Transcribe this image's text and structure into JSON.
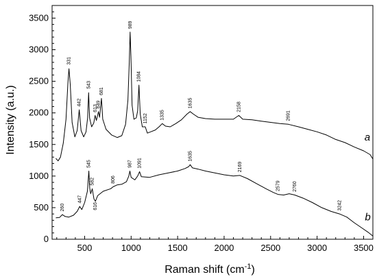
{
  "chart_data": {
    "type": "line",
    "xlabel": "Raman shift (cm",
    "xlabel_sup": "-1",
    "xlabel_end": ")",
    "ylabel": "Intensity (a.u.)",
    "xlim": [
      150,
      3600
    ],
    "ylim": [
      0,
      3700
    ],
    "xticks": [
      500,
      1000,
      1500,
      2000,
      2500,
      3000,
      3500
    ],
    "yticks": [
      0,
      500,
      1000,
      1500,
      2000,
      2500,
      3000,
      3500
    ],
    "grid": false,
    "series": [
      {
        "name": "a",
        "label_pos": [
          3540,
          1560
        ],
        "points": [
          [
            190,
            1280
          ],
          [
            215,
            1240
          ],
          [
            240,
            1300
          ],
          [
            270,
            1520
          ],
          [
            300,
            1900
          ],
          [
            320,
            2480
          ],
          [
            331,
            2700
          ],
          [
            345,
            2450
          ],
          [
            365,
            1850
          ],
          [
            395,
            1620
          ],
          [
            420,
            1720
          ],
          [
            442,
            2050
          ],
          [
            462,
            1720
          ],
          [
            490,
            1620
          ],
          [
            515,
            1700
          ],
          [
            532,
            1920
          ],
          [
            543,
            2320
          ],
          [
            553,
            1920
          ],
          [
            575,
            1780
          ],
          [
            598,
            1840
          ],
          [
            613,
            1960
          ],
          [
            626,
            1880
          ],
          [
            649,
            2020
          ],
          [
            661,
            1930
          ],
          [
            681,
            2230
          ],
          [
            695,
            1900
          ],
          [
            730,
            1740
          ],
          [
            790,
            1650
          ],
          [
            850,
            1610
          ],
          [
            900,
            1640
          ],
          [
            940,
            1820
          ],
          [
            965,
            2200
          ],
          [
            980,
            2800
          ],
          [
            989,
            3280
          ],
          [
            998,
            2900
          ],
          [
            1010,
            2120
          ],
          [
            1030,
            1900
          ],
          [
            1055,
            1920
          ],
          [
            1070,
            2030
          ],
          [
            1084,
            2440
          ],
          [
            1098,
            1980
          ],
          [
            1120,
            1780
          ],
          [
            1152,
            1780
          ],
          [
            1175,
            1680
          ],
          [
            1210,
            1700
          ],
          [
            1260,
            1730
          ],
          [
            1300,
            1780
          ],
          [
            1335,
            1830
          ],
          [
            1370,
            1790
          ],
          [
            1420,
            1780
          ],
          [
            1480,
            1830
          ],
          [
            1540,
            1890
          ],
          [
            1600,
            1980
          ],
          [
            1635,
            2020
          ],
          [
            1670,
            1980
          ],
          [
            1720,
            1930
          ],
          [
            1800,
            1910
          ],
          [
            1900,
            1900
          ],
          [
            2000,
            1900
          ],
          [
            2100,
            1900
          ],
          [
            2158,
            1960
          ],
          [
            2200,
            1900
          ],
          [
            2300,
            1890
          ],
          [
            2400,
            1870
          ],
          [
            2500,
            1850
          ],
          [
            2600,
            1830
          ],
          [
            2691,
            1820
          ],
          [
            2800,
            1780
          ],
          [
            2900,
            1740
          ],
          [
            3000,
            1700
          ],
          [
            3100,
            1650
          ],
          [
            3200,
            1580
          ],
          [
            3300,
            1530
          ],
          [
            3400,
            1460
          ],
          [
            3500,
            1400
          ],
          [
            3570,
            1340
          ],
          [
            3600,
            1270
          ]
        ]
      },
      {
        "name": "b",
        "label_pos": [
          3545,
          300
        ],
        "points": [
          [
            190,
            340
          ],
          [
            230,
            345
          ],
          [
            260,
            390
          ],
          [
            290,
            360
          ],
          [
            330,
            350
          ],
          [
            380,
            380
          ],
          [
            420,
            440
          ],
          [
            447,
            520
          ],
          [
            470,
            470
          ],
          [
            500,
            580
          ],
          [
            530,
            760
          ],
          [
            545,
            1080
          ],
          [
            555,
            810
          ],
          [
            565,
            720
          ],
          [
            582,
            800
          ],
          [
            600,
            640
          ],
          [
            616,
            600
          ],
          [
            640,
            690
          ],
          [
            700,
            760
          ],
          [
            780,
            800
          ],
          [
            806,
            830
          ],
          [
            850,
            860
          ],
          [
            900,
            870
          ],
          [
            950,
            910
          ],
          [
            975,
            1000
          ],
          [
            987,
            1080
          ],
          [
            1000,
            980
          ],
          [
            1040,
            940
          ],
          [
            1070,
            1000
          ],
          [
            1091,
            1070
          ],
          [
            1110,
            990
          ],
          [
            1200,
            980
          ],
          [
            1300,
            1020
          ],
          [
            1400,
            1050
          ],
          [
            1500,
            1080
          ],
          [
            1580,
            1120
          ],
          [
            1620,
            1150
          ],
          [
            1635,
            1180
          ],
          [
            1660,
            1130
          ],
          [
            1720,
            1110
          ],
          [
            1800,
            1080
          ],
          [
            1900,
            1050
          ],
          [
            2000,
            1020
          ],
          [
            2100,
            1000
          ],
          [
            2169,
            1010
          ],
          [
            2250,
            960
          ],
          [
            2350,
            880
          ],
          [
            2450,
            800
          ],
          [
            2530,
            740
          ],
          [
            2579,
            710
          ],
          [
            2640,
            700
          ],
          [
            2700,
            720
          ],
          [
            2760,
            700
          ],
          [
            2850,
            650
          ],
          [
            2950,
            580
          ],
          [
            3050,
            500
          ],
          [
            3150,
            440
          ],
          [
            3242,
            400
          ],
          [
            3320,
            350
          ],
          [
            3400,
            260
          ],
          [
            3480,
            180
          ],
          [
            3550,
            110
          ],
          [
            3600,
            50
          ]
        ]
      }
    ],
    "annotations": [
      {
        "text": "331",
        "x": 331,
        "y": 2760,
        "series": "a"
      },
      {
        "text": "442",
        "x": 442,
        "y": 2100,
        "series": "a"
      },
      {
        "text": "543",
        "x": 543,
        "y": 2380,
        "series": "a"
      },
      {
        "text": "613",
        "x": 613,
        "y": 2010,
        "series": "a"
      },
      {
        "text": "649",
        "x": 649,
        "y": 2070,
        "series": "a"
      },
      {
        "text": "681",
        "x": 681,
        "y": 2280,
        "series": "a"
      },
      {
        "text": "989",
        "x": 989,
        "y": 3330,
        "series": "a"
      },
      {
        "text": "1084",
        "x": 1084,
        "y": 2490,
        "series": "a"
      },
      {
        "text": "1152",
        "x": 1152,
        "y": 1830,
        "series": "a"
      },
      {
        "text": "1335",
        "x": 1335,
        "y": 1880,
        "series": "a"
      },
      {
        "text": "1635",
        "x": 1635,
        "y": 2070,
        "series": "a"
      },
      {
        "text": "2158",
        "x": 2158,
        "y": 2010,
        "series": "a"
      },
      {
        "text": "2691",
        "x": 2691,
        "y": 1870,
        "series": "a"
      },
      {
        "text": "260",
        "x": 260,
        "y": 440,
        "series": "b"
      },
      {
        "text": "447",
        "x": 447,
        "y": 570,
        "series": "b"
      },
      {
        "text": "545",
        "x": 545,
        "y": 1130,
        "series": "b"
      },
      {
        "text": "582",
        "x": 582,
        "y": 850,
        "series": "b"
      },
      {
        "text": "616",
        "x": 616,
        "y": 460,
        "series": "b"
      },
      {
        "text": "806",
        "x": 806,
        "y": 880,
        "series": "b"
      },
      {
        "text": "987",
        "x": 987,
        "y": 1130,
        "series": "b"
      },
      {
        "text": "1091",
        "x": 1091,
        "y": 1120,
        "series": "b"
      },
      {
        "text": "1635",
        "x": 1635,
        "y": 1230,
        "series": "b"
      },
      {
        "text": "2169",
        "x": 2169,
        "y": 1060,
        "series": "b"
      },
      {
        "text": "2579",
        "x": 2579,
        "y": 760,
        "series": "b"
      },
      {
        "text": "2760",
        "x": 2760,
        "y": 750,
        "series": "b"
      },
      {
        "text": "3242",
        "x": 3242,
        "y": 450,
        "series": "b"
      }
    ]
  }
}
